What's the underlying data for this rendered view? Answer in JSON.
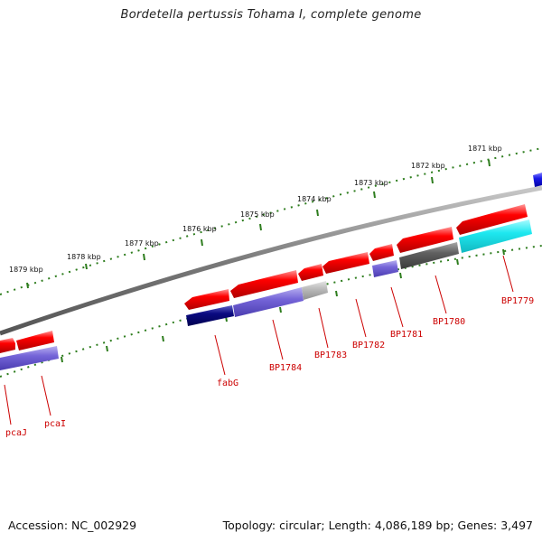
{
  "title": "Bordetella pertussis Tohama I, complete genome",
  "accession": "Accession: NC_002929",
  "topology": "Topology: circular; Length: 4,086,189 bp; Genes: 3,497",
  "colors": {
    "label": "#cc0000",
    "tick": "#2e7d1e",
    "backbone": "#8a8a8a",
    "red_gene": "#ff0000",
    "blue_gene": "#7a6ad8",
    "dark_blue_gene": "#0a0a80",
    "gray_gene": "#666666",
    "light_gray_gene": "#bdbdbd",
    "cyan_gene": "#1ee8f0",
    "edge_blue_gene": "#1a1ae8"
  },
  "kbp_labels": [
    {
      "id": "1871",
      "text": "1871 kbp"
    },
    {
      "id": "1872",
      "text": "1872 kbp"
    },
    {
      "id": "1873",
      "text": "1873 kbp"
    },
    {
      "id": "1874",
      "text": "1874 kbp"
    },
    {
      "id": "1875",
      "text": "1875 kbp"
    },
    {
      "id": "1876",
      "text": "1876 kbp"
    },
    {
      "id": "1877",
      "text": "1877 kbp"
    },
    {
      "id": "1878",
      "text": "1878 kbp"
    },
    {
      "id": "1879",
      "text": "1879 kbp"
    }
  ],
  "gene_labels": [
    {
      "id": "pcaJ",
      "text": "pcaJ"
    },
    {
      "id": "pcaI",
      "text": "pcaI"
    },
    {
      "id": "fabG",
      "text": "fabG"
    },
    {
      "id": "BP1784",
      "text": "BP1784"
    },
    {
      "id": "BP1783",
      "text": "BP1783"
    },
    {
      "id": "BP1782",
      "text": "BP1782"
    },
    {
      "id": "BP1781",
      "text": "BP1781"
    },
    {
      "id": "BP1780",
      "text": "BP1780"
    },
    {
      "id": "BP1779",
      "text": "BP1779"
    }
  ]
}
